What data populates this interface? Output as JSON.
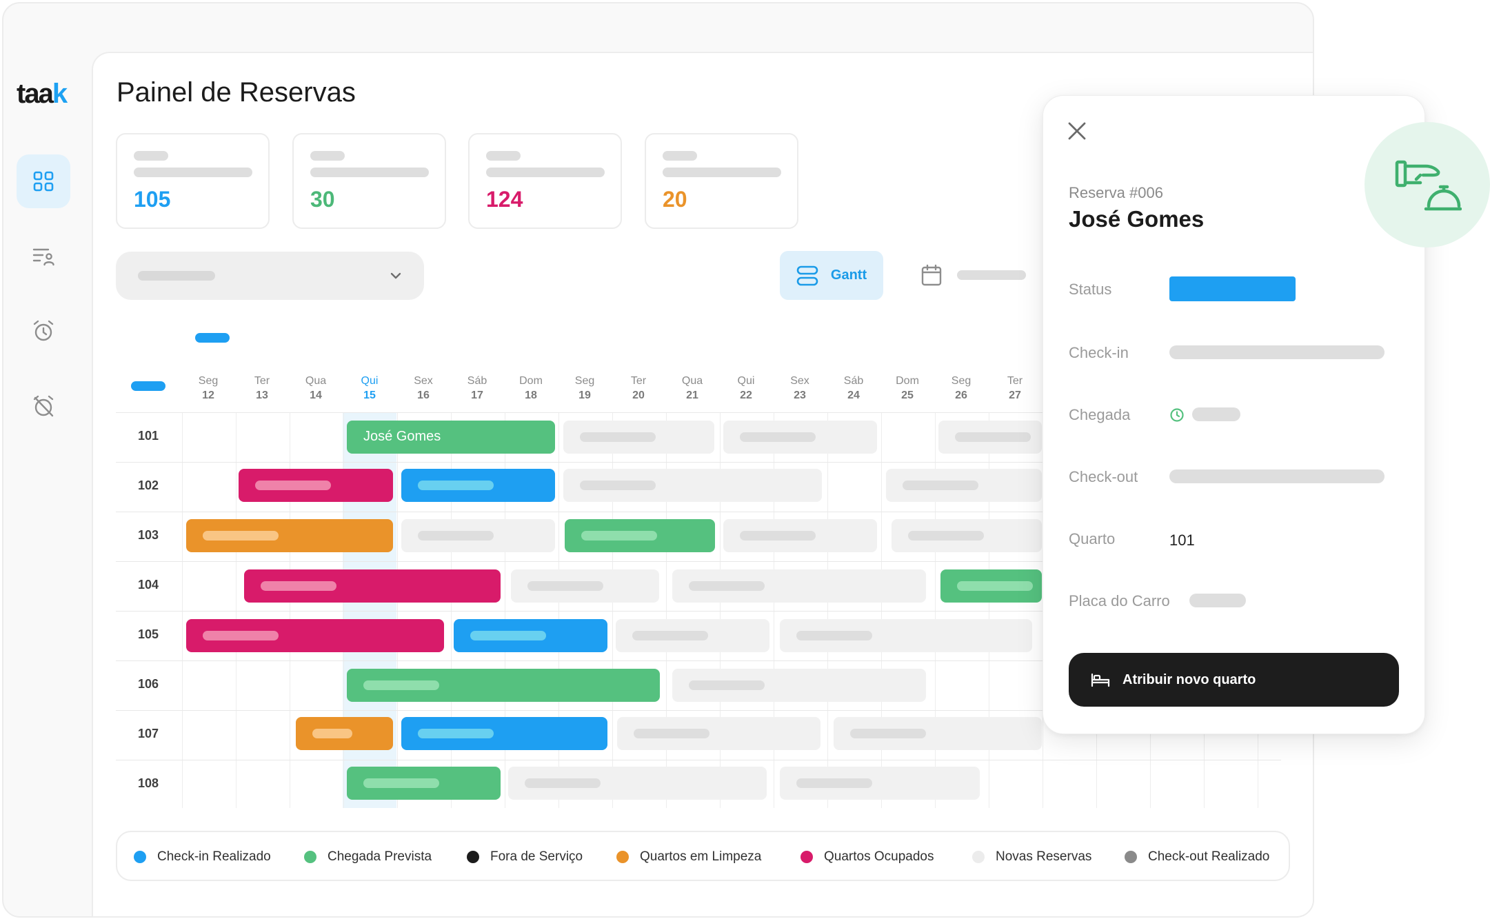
{
  "logo": {
    "text_main": "taa",
    "text_accent": "k"
  },
  "sidebar": {
    "items": [
      {
        "name": "dashboard",
        "active": true
      },
      {
        "name": "guests"
      },
      {
        "name": "alarm"
      },
      {
        "name": "alarm-off"
      }
    ]
  },
  "page": {
    "title": "Painel de Reservas"
  },
  "stats": [
    {
      "value": "105",
      "color": "#1e9ff2"
    },
    {
      "value": "30",
      "color": "#4cb878"
    },
    {
      "value": "124",
      "color": "#d81b6a"
    },
    {
      "value": "20",
      "color": "#ea932a"
    }
  ],
  "toolbar": {
    "gantt_label": "Gantt"
  },
  "gantt": {
    "days": [
      {
        "weekday": "Seg",
        "day": "12"
      },
      {
        "weekday": "Ter",
        "day": "13"
      },
      {
        "weekday": "Qua",
        "day": "14"
      },
      {
        "weekday": "Qui",
        "day": "15",
        "today": true
      },
      {
        "weekday": "Sex",
        "day": "16"
      },
      {
        "weekday": "Sáb",
        "day": "17"
      },
      {
        "weekday": "Dom",
        "day": "18"
      },
      {
        "weekday": "Seg",
        "day": "19"
      },
      {
        "weekday": "Ter",
        "day": "20"
      },
      {
        "weekday": "Qua",
        "day": "21"
      },
      {
        "weekday": "Qui",
        "day": "22"
      },
      {
        "weekday": "Sex",
        "day": "23"
      },
      {
        "weekday": "Sáb",
        "day": "24"
      },
      {
        "weekday": "Dom",
        "day": "25"
      },
      {
        "weekday": "Seg",
        "day": "26"
      },
      {
        "weekday": "Ter",
        "day": "27"
      }
    ],
    "rooms": [
      "101",
      "102",
      "103",
      "104",
      "105",
      "106",
      "107",
      "108"
    ],
    "bookings": [
      {
        "room": "101",
        "status": "green",
        "label": "José Gomes"
      },
      {
        "room": "101",
        "status": "gray"
      },
      {
        "room": "101",
        "status": "gray"
      },
      {
        "room": "101",
        "status": "gray"
      },
      {
        "room": "102",
        "status": "pink"
      },
      {
        "room": "102",
        "status": "blue"
      },
      {
        "room": "102",
        "status": "gray"
      },
      {
        "room": "102",
        "status": "gray"
      },
      {
        "room": "103",
        "status": "orange"
      },
      {
        "room": "103",
        "status": "gray"
      },
      {
        "room": "103",
        "status": "green"
      },
      {
        "room": "103",
        "status": "gray"
      },
      {
        "room": "103",
        "status": "gray"
      },
      {
        "room": "104",
        "status": "pink"
      },
      {
        "room": "104",
        "status": "gray"
      },
      {
        "room": "104",
        "status": "gray"
      },
      {
        "room": "104",
        "status": "green"
      },
      {
        "room": "105",
        "status": "pink"
      },
      {
        "room": "105",
        "status": "blue"
      },
      {
        "room": "105",
        "status": "gray"
      },
      {
        "room": "105",
        "status": "gray"
      },
      {
        "room": "106",
        "status": "green"
      },
      {
        "room": "106",
        "status": "gray"
      },
      {
        "room": "107",
        "status": "orange"
      },
      {
        "room": "107",
        "status": "blue"
      },
      {
        "room": "107",
        "status": "gray"
      },
      {
        "room": "107",
        "status": "gray"
      },
      {
        "room": "108",
        "status": "green"
      },
      {
        "room": "108",
        "status": "gray"
      },
      {
        "room": "108",
        "status": "gray"
      }
    ]
  },
  "legend": [
    {
      "label": "Check-in Realizado",
      "color": "#1e9ff2"
    },
    {
      "label": "Chegada Prevista",
      "color": "#55c17f"
    },
    {
      "label": "Fora de Serviço",
      "color": "#1c1c1c"
    },
    {
      "label": "Quartos em Limpeza",
      "color": "#ea932a"
    },
    {
      "label": "Quartos Ocupados",
      "color": "#d81b6a"
    },
    {
      "label": "Novas Reservas",
      "color": "#ececec"
    },
    {
      "label": "Check-out Realizado",
      "color": "#8a8a8a"
    }
  ],
  "detail": {
    "reservation": "Reserva #006",
    "guest_name": "José Gomes",
    "labels": {
      "status": "Status",
      "checkin": "Check-in",
      "arrival": "Chegada",
      "checkout": "Check-out",
      "room": "Quarto",
      "plate": "Placa do Carro"
    },
    "room_value": "101",
    "assign_button": "Atribuir novo quarto"
  },
  "colors": {
    "accent": "#1e9ff2",
    "green": "#55c17f",
    "pink": "#d81b6a",
    "orange": "#ea932a",
    "gray": "#f1f1f1"
  }
}
